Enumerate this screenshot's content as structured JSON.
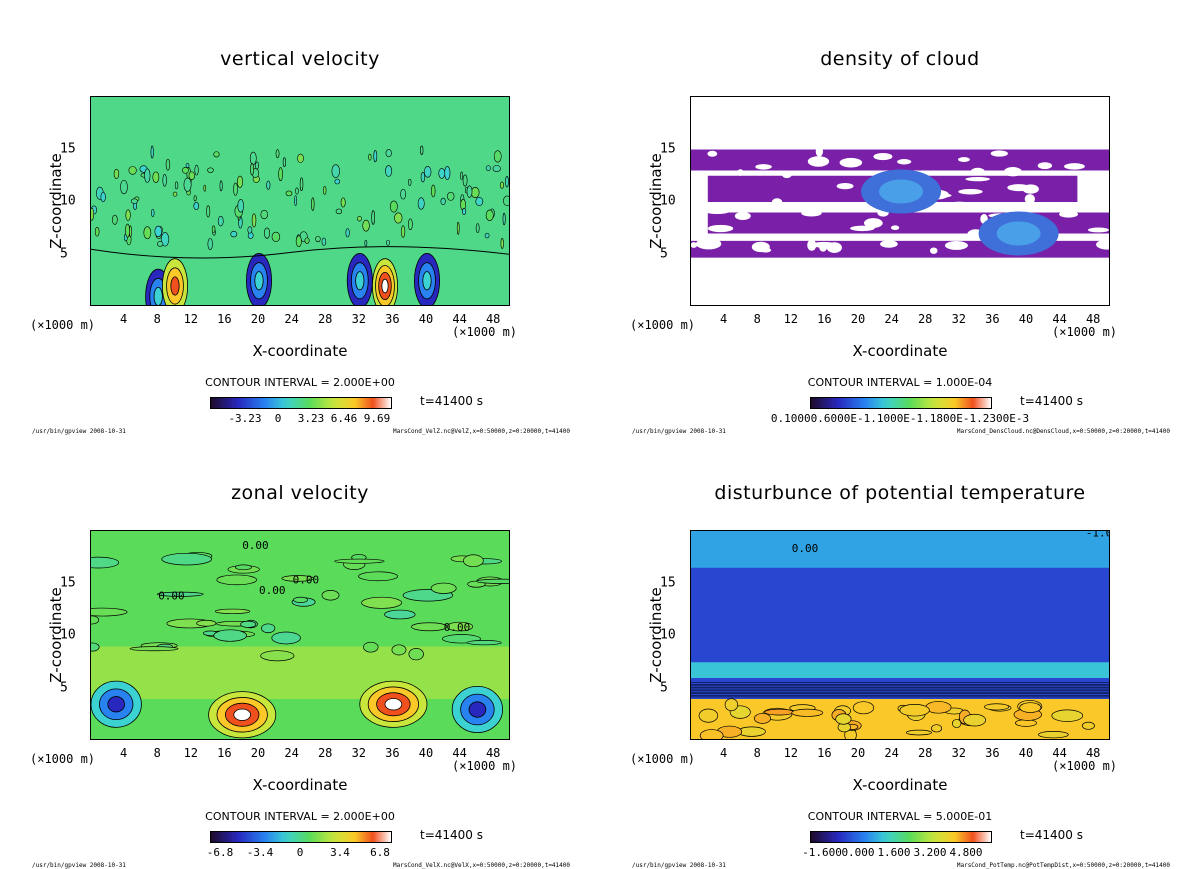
{
  "panels": [
    {
      "title": "vertical velocity",
      "contour_interval": "CONTOUR INTERVAL = 2.000E+00",
      "colorbar_labels": [
        "-3.23",
        "0",
        "3.23",
        "6.46",
        "9.69"
      ],
      "time": "t=41400 s",
      "footer_left": "/usr/bin/gpview  2008-10-31",
      "footer_right": "MarsCond_VelZ.nc@VelZ,x=0:50000,z=0:20000,t=41400",
      "style": "velz",
      "colormap": "rainbow"
    },
    {
      "title": "density of cloud",
      "contour_interval": "CONTOUR INTERVAL = 1.000E-04",
      "colorbar_labels": [
        "0.10000.6000E-1.1000E-1.1800E-1.2300E-3"
      ],
      "time": "t=41400 s",
      "footer_left": "/usr/bin/gpview  2008-10-31",
      "footer_right": "MarsCond_DensCloud.nc@DensCloud,x=0:50000,z=0:20000,t=41400",
      "style": "cloud",
      "colormap": "rainbow"
    },
    {
      "title": "zonal velocity",
      "contour_interval": "CONTOUR INTERVAL = 2.000E+00",
      "colorbar_labels": [
        "-6.8",
        "-3.4",
        "0",
        "3.4",
        "6.8"
      ],
      "time": "t=41400 s",
      "footer_left": "/usr/bin/gpview  2008-10-31",
      "footer_right": "MarsCond_VelX.nc@VelX,x=0:50000,z=0:20000,t=41400",
      "style": "velx",
      "colormap": "rainbow"
    },
    {
      "title": "disturbunce of potential temperature",
      "contour_interval": "CONTOUR INTERVAL = 5.000E-01",
      "colorbar_labels": [
        "-1.600",
        "0.000",
        "1.600",
        "3.200",
        "4.800"
      ],
      "time": "t=41400 s",
      "footer_left": "/usr/bin/gpview  2008-10-31",
      "footer_right": "MarsCond_PotTemp.nc@PotTempDist,x=0:50000,z=0:20000,t=41400",
      "style": "ptemp",
      "colormap": "rainbow"
    }
  ],
  "axes": {
    "xlabel": "X-coordinate",
    "ylabel": "Z-coordinate",
    "x_unit": "(×1000 m)",
    "x_ticks": [
      "4",
      "8",
      "12",
      "16",
      "20",
      "24",
      "28",
      "32",
      "36",
      "40",
      "44",
      "48"
    ],
    "y_ticks": [
      "5",
      "10",
      "15"
    ],
    "x_range": [
      0,
      50
    ],
    "y_range": [
      0,
      20
    ]
  },
  "chart_data": [
    {
      "type": "heatmap",
      "title": "vertical velocity",
      "xlabel": "X-coordinate",
      "ylabel": "Z-coordinate",
      "xlim": [
        0,
        50
      ],
      "ylim": [
        0,
        20
      ],
      "x_ticks": [
        4,
        8,
        12,
        16,
        20,
        24,
        28,
        32,
        36,
        40,
        44,
        48
      ],
      "y_ticks": [
        5,
        10,
        15
      ],
      "colorbar_ticks": [
        -3.23,
        0,
        3.23,
        6.46,
        9.69
      ],
      "contour_interval": 2.0,
      "features": [
        {
          "x": 8,
          "z": 1,
          "value": -3.23
        },
        {
          "x": 10,
          "z": 2,
          "value": 6.46
        },
        {
          "x": 20,
          "z": 2.5,
          "value": -3.23
        },
        {
          "x": 32,
          "z": 2.5,
          "value": -3.23
        },
        {
          "x": 35,
          "z": 2,
          "value": 9.69
        },
        {
          "x": 40,
          "z": 2.5,
          "value": -3.23
        }
      ]
    },
    {
      "type": "heatmap",
      "title": "density of cloud",
      "xlabel": "X-coordinate",
      "ylabel": "Z-coordinate",
      "xlim": [
        0,
        50
      ],
      "ylim": [
        0,
        20
      ],
      "x_ticks": [
        4,
        8,
        12,
        16,
        20,
        24,
        28,
        32,
        36,
        40,
        44,
        48
      ],
      "y_ticks": [
        5,
        10,
        15
      ],
      "contour_interval": 0.0001,
      "features": [
        {
          "x": 25,
          "z": 11,
          "value": 0.0002
        },
        {
          "x": 39,
          "z": 7,
          "value": 0.0002
        }
      ]
    },
    {
      "type": "heatmap",
      "title": "zonal velocity",
      "xlabel": "X-coordinate",
      "ylabel": "Z-coordinate",
      "xlim": [
        0,
        50
      ],
      "ylim": [
        0,
        20
      ],
      "x_ticks": [
        4,
        8,
        12,
        16,
        20,
        24,
        28,
        32,
        36,
        40,
        44,
        48
      ],
      "y_ticks": [
        5,
        10,
        15
      ],
      "colorbar_ticks": [
        -6.8,
        -3.4,
        0,
        3.4,
        6.8
      ],
      "contour_interval": 2.0,
      "contour_labels": [
        "0.00"
      ],
      "features": [
        {
          "x": 18,
          "z": 2.5,
          "value": 6.8
        },
        {
          "x": 36,
          "z": 3.5,
          "value": 6.8
        },
        {
          "x": 3,
          "z": 3.5,
          "value": -6.8
        },
        {
          "x": 46,
          "z": 3,
          "value": -6.8
        }
      ]
    },
    {
      "type": "heatmap",
      "title": "disturbunce of potential temperature",
      "xlabel": "X-coordinate",
      "ylabel": "Z-coordinate",
      "xlim": [
        0,
        50
      ],
      "ylim": [
        0,
        20
      ],
      "x_ticks": [
        4,
        8,
        12,
        16,
        20,
        24,
        28,
        32,
        36,
        40,
        44,
        48
      ],
      "y_ticks": [
        5,
        10,
        15
      ],
      "colorbar_ticks": [
        -1.6,
        0.0,
        1.6,
        3.2,
        4.8
      ],
      "contour_interval": 0.5,
      "contour_labels": [
        "0.00",
        "-1.00"
      ],
      "features": [
        {
          "z_range": [
            0,
            4
          ],
          "value": 3.2
        },
        {
          "z_range": [
            5,
            17
          ],
          "value": -1.6
        }
      ]
    }
  ]
}
